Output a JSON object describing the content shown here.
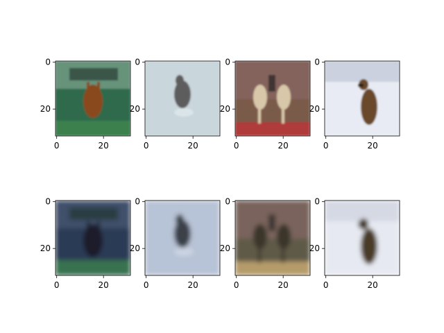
{
  "figure": {
    "rows": [
      {
        "name": "original-images",
        "panels": [
          {
            "subject": "deer-on-grass",
            "colors": {
              "bg": "#2f6a4c",
              "accent": "#8a4a1e",
              "light": "#cfe0d0"
            }
          },
          {
            "subject": "cat-on-light",
            "colors": {
              "bg": "#c9d6dc",
              "accent": "#5d5d5d",
              "light": "#e6eef0"
            }
          },
          {
            "subject": "horses-arena",
            "colors": {
              "bg": "#7a5a4a",
              "accent": "#d9c7a9",
              "light": "#b03a3a"
            }
          },
          {
            "subject": "dog-on-snow",
            "colors": {
              "bg": "#e8ebf3",
              "accent": "#6b4a2a",
              "light": "#b8bfd0"
            }
          }
        ]
      },
      {
        "name": "reconstructed-images",
        "panels": [
          {
            "subject": "blurry-deer",
            "colors": {
              "bg": "#2c3a55",
              "accent": "#1b1f2b",
              "light": "#6b7a95"
            }
          },
          {
            "subject": "blurry-cat",
            "colors": {
              "bg": "#b7c3d6",
              "accent": "#3a3f4a",
              "light": "#d8dfea"
            }
          },
          {
            "subject": "blurry-horses",
            "colors": {
              "bg": "#5f5a46",
              "accent": "#3b362b",
              "light": "#b59b6a"
            }
          },
          {
            "subject": "blurry-dog",
            "colors": {
              "bg": "#e6e9f1",
              "accent": "#4a3a28",
              "light": "#c9cfdc"
            }
          }
        ]
      }
    ],
    "axes": {
      "x_ticks": [
        "0",
        "20"
      ],
      "y_ticks": [
        "0",
        "20"
      ]
    }
  }
}
